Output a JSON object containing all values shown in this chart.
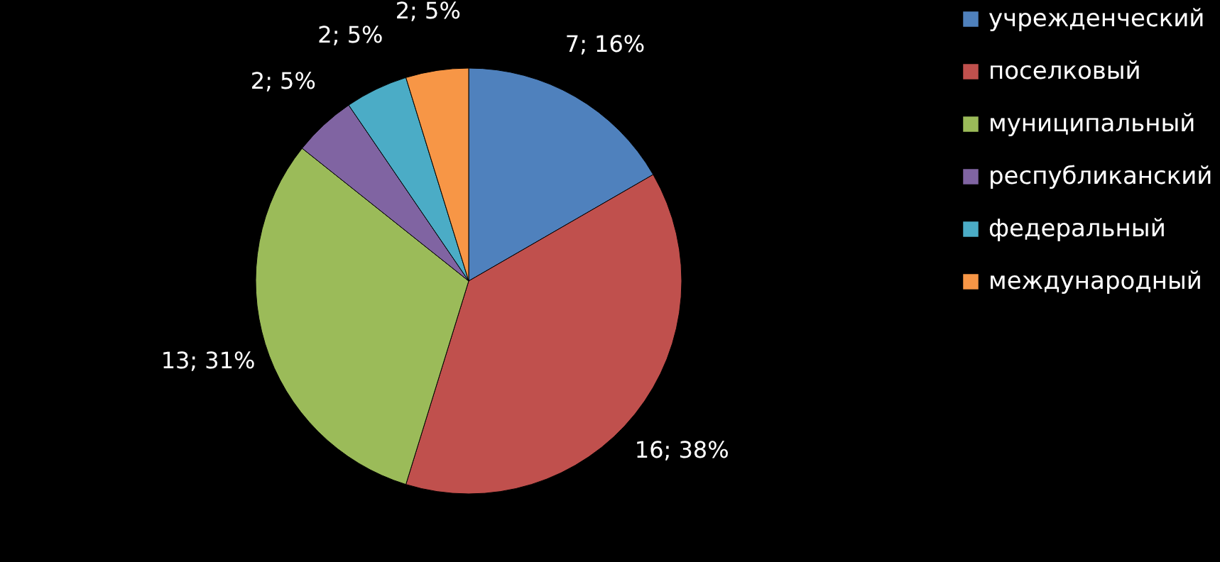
{
  "chart_data": {
    "type": "pie",
    "categories": [
      "учрежденческий",
      "поселковый",
      "муниципальный",
      "республиканский",
      "федеральный",
      "международный"
    ],
    "values": [
      7,
      16,
      13,
      2,
      2,
      2
    ],
    "colors": [
      "#4f81bd",
      "#c0504d",
      "#9bbb59",
      "#8064a2",
      "#4bacc6",
      "#f79646"
    ],
    "value_labels": [
      "7; 16%",
      "16; 38%",
      "13; 31%",
      "2; 5%",
      "2; 5%",
      "2; 5%"
    ],
    "legend": "right"
  }
}
